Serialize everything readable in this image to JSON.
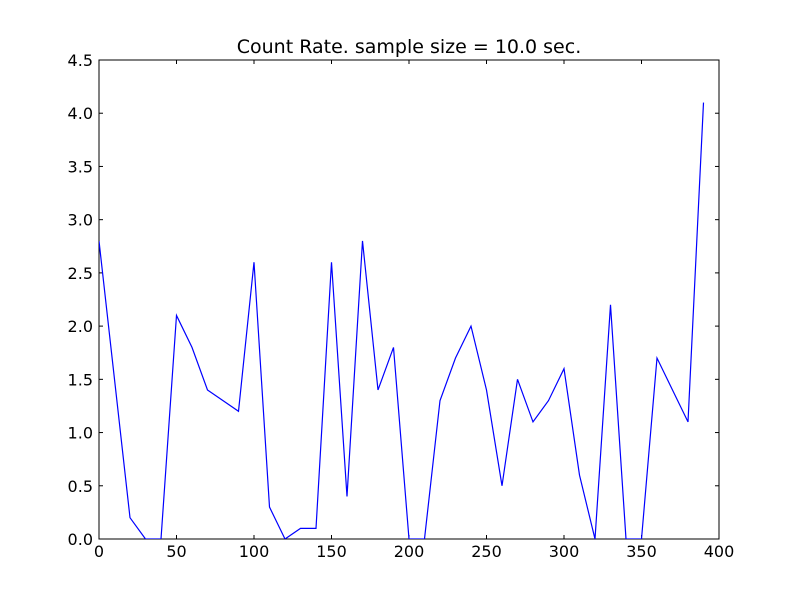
{
  "chart_data": {
    "type": "line",
    "title": "Count Rate. sample size = 10.0 sec.",
    "xlabel": "",
    "ylabel": "",
    "xlim": [
      0,
      400
    ],
    "ylim": [
      0,
      4.5
    ],
    "x_ticks": [
      0,
      50,
      100,
      150,
      200,
      250,
      300,
      350,
      400
    ],
    "x_tick_labels": [
      "0",
      "50",
      "100",
      "150",
      "200",
      "250",
      "300",
      "350",
      "400"
    ],
    "y_ticks": [
      0,
      0.5,
      1.0,
      1.5,
      2.0,
      2.5,
      3.0,
      3.5,
      4.0,
      4.5
    ],
    "y_tick_labels": [
      "0.0",
      "0.5",
      "1.0",
      "1.5",
      "2.0",
      "2.5",
      "3.0",
      "3.5",
      "4.0",
      "4.5"
    ],
    "grid": false,
    "series": [
      {
        "color": "#0000ff",
        "x": [
          0,
          10,
          20,
          30,
          40,
          50,
          60,
          70,
          80,
          90,
          100,
          110,
          120,
          130,
          140,
          150,
          160,
          170,
          180,
          190,
          200,
          210,
          220,
          230,
          240,
          250,
          260,
          270,
          280,
          290,
          300,
          310,
          320,
          330,
          340,
          350,
          360,
          370,
          380,
          390
        ],
        "y": [
          2.8,
          1.5,
          0.2,
          0.0,
          0.0,
          2.1,
          1.8,
          1.4,
          1.3,
          1.2,
          2.6,
          0.3,
          0.0,
          0.1,
          0.1,
          2.6,
          0.4,
          2.8,
          1.4,
          1.8,
          0.0,
          0.0,
          1.3,
          1.7,
          2.0,
          1.4,
          0.5,
          1.5,
          1.1,
          1.3,
          1.6,
          0.6,
          0.0,
          2.2,
          0.0,
          0.0,
          1.7,
          1.4,
          1.1,
          4.1
        ]
      }
    ]
  }
}
